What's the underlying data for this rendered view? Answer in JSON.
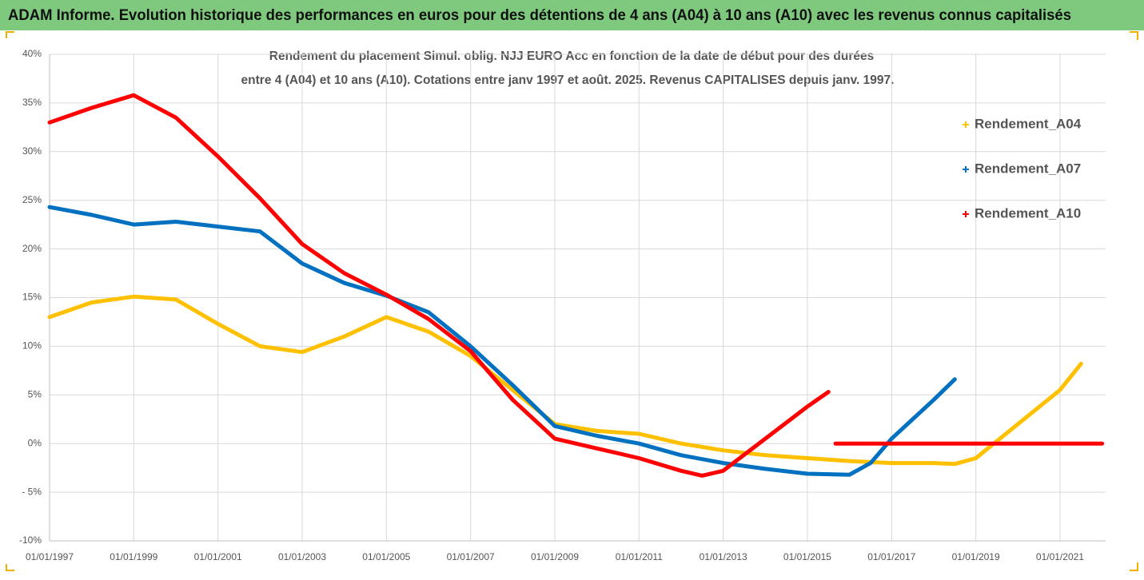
{
  "chart_data": {
    "type": "line",
    "title": "ADAM Informe. Evolution historique des performances en euros pour des détentions de 4 ans (A04) à 10 ans (A10) avec les revenus connus capitalisés",
    "subtitle": [
      "Rendement du placement Simul. oblig. NJJ EURO Acc en fonction de la date de début pour des durées",
      "entre 4 (A04) et 10 ans (A10). Cotations entre janv 1997 et août. 2025. Revenus CAPITALISES depuis janv. 1997."
    ],
    "xlim": [
      "1997-01",
      "2022-02"
    ],
    "xticks": [
      {
        "value": "1997-01",
        "label": "01/01/1997"
      },
      {
        "value": "1999-01",
        "label": "01/01/1999"
      },
      {
        "value": "2001-01",
        "label": "01/01/2001"
      },
      {
        "value": "2003-01",
        "label": "01/01/2003"
      },
      {
        "value": "2005-01",
        "label": "01/01/2005"
      },
      {
        "value": "2007-01",
        "label": "01/01/2007"
      },
      {
        "value": "2009-01",
        "label": "01/01/2009"
      },
      {
        "value": "2011-01",
        "label": "01/01/2011"
      },
      {
        "value": "2013-01",
        "label": "01/01/2013"
      },
      {
        "value": "2015-01",
        "label": "01/01/2015"
      },
      {
        "value": "2017-01",
        "label": "01/01/2017"
      },
      {
        "value": "2019-01",
        "label": "01/01/2019"
      },
      {
        "value": "2021-01",
        "label": "01/01/2021"
      }
    ],
    "ylim": [
      -10,
      40
    ],
    "yticks": [
      {
        "value": -10,
        "label": "-10%"
      },
      {
        "value": -5,
        "label": "- 5%"
      },
      {
        "value": 0,
        "label": "0%"
      },
      {
        "value": 5,
        "label": "5%"
      },
      {
        "value": 10,
        "label": "10%"
      },
      {
        "value": 15,
        "label": "15%"
      },
      {
        "value": 20,
        "label": "20%"
      },
      {
        "value": 25,
        "label": "25%"
      },
      {
        "value": 30,
        "label": "30%"
      },
      {
        "value": 35,
        "label": "35%"
      },
      {
        "value": 40,
        "label": "40%"
      }
    ],
    "grid": true,
    "legend": "right",
    "series": [
      {
        "name": "Rendement_A04",
        "color": "#ffc000",
        "x": [
          "1997-01",
          "1998-01",
          "1999-01",
          "2000-01",
          "2001-01",
          "2002-01",
          "2003-01",
          "2004-01",
          "2005-01",
          "2006-01",
          "2007-01",
          "2008-01",
          "2009-01",
          "2010-01",
          "2011-01",
          "2012-01",
          "2013-01",
          "2014-01",
          "2015-01",
          "2016-01",
          "2017-01",
          "2018-01",
          "2018-07",
          "2019-01",
          "2020-01",
          "2021-01",
          "2021-07"
        ],
        "values": [
          13,
          14.5,
          15.1,
          14.8,
          12.3,
          10,
          9.4,
          11,
          13,
          11.5,
          9,
          5.5,
          2,
          1.3,
          1,
          0,
          -0.7,
          -1.2,
          -1.5,
          -1.8,
          -2,
          -2,
          -2.1,
          -1.5,
          2,
          5.5,
          8.2
        ]
      },
      {
        "name": "Rendement_A07",
        "color": "#0070c0",
        "x": [
          "1997-01",
          "1998-01",
          "1999-01",
          "2000-01",
          "2001-01",
          "2002-01",
          "2003-01",
          "2004-01",
          "2005-01",
          "2006-01",
          "2007-01",
          "2008-01",
          "2009-01",
          "2010-01",
          "2011-01",
          "2012-01",
          "2013-01",
          "2014-01",
          "2015-01",
          "2016-01",
          "2016-07",
          "2017-01",
          "2018-01",
          "2018-07"
        ],
        "values": [
          24.3,
          23.5,
          22.5,
          22.8,
          22.3,
          21.8,
          18.5,
          16.5,
          15.2,
          13.5,
          10,
          6,
          1.8,
          0.8,
          0,
          -1.2,
          -2,
          -2.6,
          -3.1,
          -3.2,
          -2,
          0.5,
          4.5,
          6.6
        ]
      },
      {
        "name": "Rendement_A10",
        "color": "#ff0000",
        "x": [
          "1997-01",
          "1998-01",
          "1999-01",
          "2000-01",
          "2001-01",
          "2002-01",
          "2003-01",
          "2004-01",
          "2005-01",
          "2006-01",
          "2007-01",
          "2008-01",
          "2009-01",
          "2010-01",
          "2011-01",
          "2012-01",
          "2012-07",
          "2013-01",
          "2014-01",
          "2015-01",
          "2015-07",
          "2015-08",
          "2015-09",
          "2022-01"
        ],
        "values": [
          33,
          34.5,
          35.8,
          33.5,
          29.5,
          25.2,
          20.5,
          17.5,
          15.3,
          12.8,
          9.5,
          4.5,
          0.5,
          -0.5,
          -1.5,
          -2.8,
          -3.3,
          -2.8,
          0.5,
          3.8,
          5.3,
          null,
          0,
          0
        ]
      }
    ]
  }
}
